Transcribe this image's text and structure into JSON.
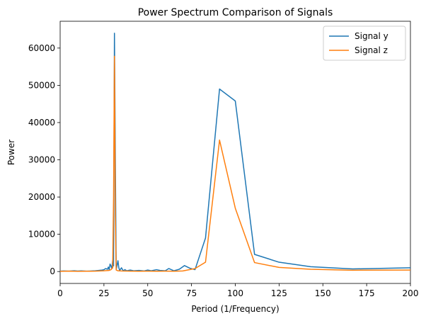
{
  "chart_data": {
    "type": "line",
    "title": "Power Spectrum Comparison of Signals",
    "xlabel": "Period (1/Frequency)",
    "ylabel": "Power",
    "xlim": [
      0,
      200
    ],
    "ylim": [
      -3200,
      67200
    ],
    "xticks": [
      0,
      25,
      50,
      75,
      100,
      125,
      150,
      175,
      200
    ],
    "yticks": [
      0,
      10000,
      20000,
      30000,
      40000,
      50000,
      60000
    ],
    "legend": "top-right",
    "grid": false,
    "series": [
      {
        "name": "Signal y",
        "color": "#1f77b4",
        "x": [
          0,
          2,
          5,
          8,
          10,
          12,
          15,
          18,
          20,
          22,
          24,
          25,
          26,
          27,
          27.5,
          28,
          28.5,
          29,
          29.5,
          30,
          30.5,
          31,
          31.5,
          32,
          33,
          33.5,
          34,
          35,
          36,
          37,
          38,
          40,
          42,
          45,
          48,
          50,
          52,
          55,
          57,
          60,
          62,
          65,
          68,
          71,
          74,
          77,
          83,
          91,
          100,
          111,
          125,
          143,
          167,
          200
        ],
        "y": [
          100,
          150,
          100,
          200,
          120,
          180,
          100,
          150,
          200,
          300,
          400,
          500,
          800,
          600,
          1200,
          500,
          2000,
          1500,
          800,
          3000,
          1500,
          64000,
          30000,
          500,
          2900,
          1000,
          300,
          1000,
          200,
          500,
          200,
          400,
          200,
          300,
          150,
          400,
          200,
          500,
          300,
          200,
          800,
          200,
          600,
          1600,
          900,
          500,
          9000,
          49000,
          45800,
          4600,
          2500,
          1300,
          700,
          1000
        ]
      },
      {
        "name": "Signal z",
        "color": "#ff7f0e",
        "x": [
          0,
          5,
          10,
          15,
          20,
          25,
          28,
          29,
          30,
          30.5,
          31,
          31.5,
          32,
          33,
          35,
          40,
          45,
          50,
          55,
          60,
          65,
          70,
          77,
          83,
          91,
          100,
          111,
          125,
          143,
          167,
          200
        ],
        "y": [
          50,
          100,
          50,
          80,
          100,
          200,
          300,
          500,
          1000,
          20000,
          57800,
          15000,
          400,
          200,
          150,
          100,
          80,
          100,
          80,
          100,
          80,
          150,
          800,
          2500,
          35300,
          17000,
          2400,
          1100,
          600,
          350,
          400
        ]
      }
    ]
  }
}
